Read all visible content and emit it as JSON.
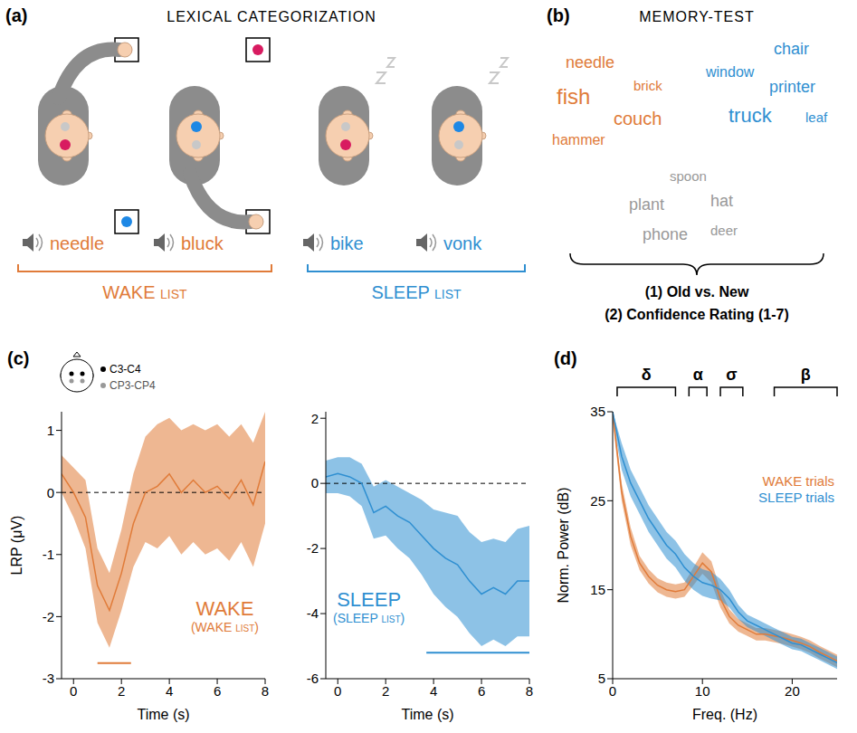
{
  "panel_a": {
    "letter": "(a)",
    "title": "LEXICAL CATEGORIZATION",
    "words": [
      {
        "text": "needle",
        "color": "#E07B39"
      },
      {
        "text": "bluck",
        "color": "#E07B39"
      },
      {
        "text": "bike",
        "color": "#2F8FD1"
      },
      {
        "text": "vonk",
        "color": "#2F8FD1"
      }
    ],
    "lists": [
      {
        "label": "WAKE list",
        "color": "#E07B39"
      },
      {
        "label": "SLEEP list",
        "color": "#2F8FD1"
      }
    ]
  },
  "panel_b": {
    "letter": "(b)",
    "title": "MEMORY-TEST",
    "groups": [
      {
        "color": "#E07B39",
        "words": [
          "needle",
          "brick",
          "fish",
          "couch",
          "hammer"
        ]
      },
      {
        "color": "#2F8FD1",
        "words": [
          "chair",
          "window",
          "printer",
          "truck",
          "leaf"
        ]
      },
      {
        "color": "#999999",
        "words": [
          "spoon",
          "plant",
          "hat",
          "phone",
          "deer"
        ]
      }
    ],
    "questions": [
      "(1) Old vs. New",
      "(2) Confidence Rating (1-7)"
    ]
  },
  "chart_data": [
    {
      "type": "line",
      "panel": "(c)",
      "inset_labels": [
        "C3-C4",
        "CP3-CP4"
      ],
      "x": [
        -0.5,
        0,
        0.5,
        1,
        1.5,
        2,
        2.5,
        3,
        3.5,
        4,
        4.5,
        5,
        5.5,
        6,
        6.5,
        7,
        7.5,
        8
      ],
      "xlim": [
        -0.5,
        8
      ],
      "xticks": [
        0,
        2,
        4,
        6,
        8
      ],
      "ylim": [
        -3,
        1.3
      ],
      "yticks": [
        -3,
        -2,
        -1,
        0,
        1
      ],
      "x_label": "Time (s)",
      "y_label": "LRP (μV)",
      "grid": false,
      "reference_y": 0,
      "series": [
        {
          "name": "WAKE",
          "annotation": "(WAKE list)",
          "color": "#E07B39",
          "values": [
            0.3,
            0,
            -0.4,
            -1.5,
            -1.9,
            -1.3,
            -0.5,
            0,
            0.1,
            0.3,
            0,
            0.2,
            0,
            0.1,
            -0.1,
            0.2,
            -0.2,
            0.5
          ],
          "lower": [
            0,
            -0.4,
            -0.9,
            -2.1,
            -2.5,
            -1.9,
            -1.2,
            -0.8,
            -0.9,
            -0.7,
            -1,
            -0.8,
            -1,
            -0.9,
            -1.1,
            -0.8,
            -1.2,
            -0.5
          ],
          "upper": [
            0.6,
            0.4,
            0.2,
            -0.9,
            -1.3,
            -0.6,
            0.3,
            0.9,
            1.1,
            1.2,
            1,
            1.1,
            1,
            1.1,
            0.9,
            1.1,
            0.8,
            1.3
          ]
        }
      ],
      "significance": {
        "x": [
          1.0,
          2.4
        ],
        "y": -2.75
      }
    },
    {
      "type": "line",
      "x": [
        -0.5,
        0,
        0.5,
        1,
        1.5,
        2,
        2.5,
        3,
        3.5,
        4,
        4.5,
        5,
        5.5,
        6,
        6.5,
        7,
        7.5,
        8
      ],
      "xlim": [
        -0.5,
        8
      ],
      "xticks": [
        0,
        2,
        4,
        6,
        8
      ],
      "ylim": [
        -6,
        2.2
      ],
      "yticks": [
        -6,
        -4,
        -2,
        0,
        2
      ],
      "x_label": "Time (s)",
      "grid": false,
      "reference_y": 0,
      "series": [
        {
          "name": "SLEEP",
          "annotation": "(SLEEP list)",
          "color": "#2F8FD1",
          "values": [
            0.2,
            0.3,
            0.2,
            0,
            -0.9,
            -0.7,
            -1,
            -1.2,
            -1.6,
            -2,
            -2.3,
            -2.5,
            -3,
            -3.4,
            -3.2,
            -3.4,
            -3,
            -3
          ],
          "lower": [
            -0.3,
            -0.3,
            -0.4,
            -0.7,
            -1.7,
            -1.6,
            -2,
            -2.3,
            -2.8,
            -3.4,
            -3.8,
            -4.1,
            -4.6,
            -5,
            -4.8,
            -5,
            -4.7,
            -4.7
          ],
          "upper": [
            0.7,
            0.8,
            0.8,
            0.6,
            -0.1,
            0.1,
            -0.1,
            -0.3,
            -0.5,
            -0.8,
            -0.9,
            -1,
            -1.5,
            -1.8,
            -1.7,
            -1.8,
            -1.4,
            -1.3
          ]
        }
      ],
      "significance": {
        "x": [
          3.7,
          8
        ],
        "y": -5.2
      }
    },
    {
      "type": "line",
      "panel": "(d)",
      "x": [
        0,
        1,
        2,
        3,
        4,
        5,
        6,
        7,
        8,
        9,
        10,
        11,
        12,
        13,
        14,
        15,
        16,
        17,
        18,
        19,
        20,
        21,
        22,
        23,
        24,
        25
      ],
      "xlim": [
        0,
        25
      ],
      "xticks": [
        0,
        10,
        20
      ],
      "ylim": [
        5,
        35
      ],
      "yticks": [
        5,
        15,
        25,
        35
      ],
      "x_label": "Freq. (Hz)",
      "y_label": "Norm. Power (dB)",
      "grid": false,
      "legend": "right",
      "bands": [
        {
          "label": "δ",
          "range": [
            0.5,
            7
          ]
        },
        {
          "label": "α",
          "range": [
            8.5,
            10.5
          ]
        },
        {
          "label": "σ",
          "range": [
            12,
            14.5
          ]
        },
        {
          "label": "β",
          "range": [
            18,
            25
          ]
        }
      ],
      "series": [
        {
          "name": "WAKE trials",
          "color": "#E07B39",
          "values": [
            35,
            26,
            21,
            18,
            16.5,
            15.5,
            15,
            14.8,
            15,
            16.5,
            18,
            17,
            14,
            12,
            11,
            10.5,
            10,
            10,
            9.8,
            9.6,
            9.3,
            9,
            8.6,
            8,
            7.5,
            7
          ],
          "lower": [
            34,
            25,
            20,
            17.2,
            15.7,
            14.7,
            14.2,
            14,
            14.2,
            15.5,
            16.8,
            15.8,
            13,
            11.2,
            10.3,
            9.8,
            9.3,
            9.3,
            9.1,
            8.9,
            8.6,
            8.3,
            7.9,
            7.3,
            6.8,
            6.3
          ],
          "upper": [
            35,
            27,
            22,
            18.8,
            17.3,
            16.3,
            15.8,
            15.6,
            15.8,
            17.5,
            19.2,
            18.2,
            15,
            12.8,
            11.7,
            11.2,
            10.7,
            10.7,
            10.5,
            10.3,
            10,
            9.7,
            9.3,
            8.7,
            8.2,
            7.7
          ]
        },
        {
          "name": "SLEEP trials",
          "color": "#2F8FD1",
          "values": [
            35,
            30,
            27,
            25,
            23,
            21.5,
            20,
            19,
            17.5,
            16.5,
            15.8,
            15.5,
            15,
            14,
            12.5,
            11.5,
            11,
            10.5,
            10,
            9.5,
            9,
            8.8,
            8.3,
            7.8,
            7.3,
            6.8
          ],
          "lower": [
            34,
            28.5,
            25.5,
            23.5,
            21.5,
            20,
            18.5,
            17.5,
            16,
            15,
            14.3,
            14,
            13.8,
            13,
            11.7,
            10.8,
            10.3,
            9.8,
            9.3,
            8.8,
            8.3,
            8.1,
            7.6,
            7.1,
            6.6,
            6.1
          ],
          "upper": [
            35,
            31.5,
            28.5,
            26.5,
            24.5,
            23,
            21.5,
            20.5,
            19,
            18,
            17.3,
            17,
            16.2,
            15,
            13.3,
            12.2,
            11.7,
            11.2,
            10.7,
            10.2,
            9.7,
            9.5,
            9,
            8.5,
            8,
            7.5
          ]
        }
      ]
    }
  ]
}
